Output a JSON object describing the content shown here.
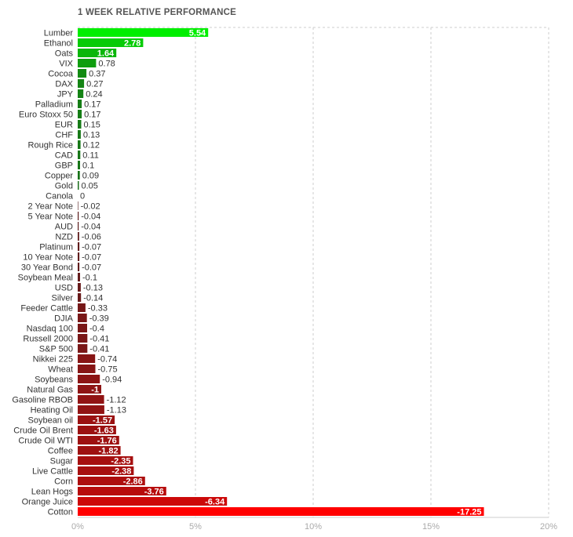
{
  "chart_data": {
    "type": "bar",
    "orientation": "horizontal",
    "title": "1 WEEK RELATIVE PERFORMANCE",
    "xlim": [
      0,
      20
    ],
    "ticks": [
      "0%",
      "5%",
      "10%",
      "15%",
      "20%"
    ],
    "grid": true,
    "categories": [
      "Lumber",
      "Ethanol",
      "Oats",
      "VIX",
      "Cocoa",
      "DAX",
      "JPY",
      "Palladium",
      "Euro Stoxx 50",
      "EUR",
      "CHF",
      "Rough Rice",
      "CAD",
      "GBP",
      "Copper",
      "Gold",
      "Canola",
      "2 Year Note",
      "5 Year Note",
      "AUD",
      "NZD",
      "Platinum",
      "10 Year Note",
      "30 Year Bond",
      "Soybean Meal",
      "USD",
      "Silver",
      "Feeder Cattle",
      "DJIA",
      "Nasdaq 100",
      "Russell 2000",
      "S&P 500",
      "Nikkei 225",
      "Wheat",
      "Soybeans",
      "Natural Gas",
      "Gasoline RBOB",
      "Heating Oil",
      "Soybean oil",
      "Crude Oil Brent",
      "Crude Oil WTI",
      "Coffee",
      "Sugar",
      "Live Cattle",
      "Corn",
      "Lean Hogs",
      "Orange Juice",
      "Cotton"
    ],
    "values": [
      5.54,
      2.78,
      1.64,
      0.78,
      0.37,
      0.27,
      0.24,
      0.17,
      0.17,
      0.15,
      0.13,
      0.12,
      0.11,
      0.1,
      0.09,
      0.05,
      0,
      -0.02,
      -0.04,
      -0.04,
      -0.06,
      -0.07,
      -0.07,
      -0.07,
      -0.1,
      -0.13,
      -0.14,
      -0.33,
      -0.39,
      -0.4,
      -0.41,
      -0.41,
      -0.74,
      -0.75,
      -0.94,
      -1,
      -1.12,
      -1.13,
      -1.57,
      -1.63,
      -1.76,
      -1.82,
      -2.35,
      -2.38,
      -2.86,
      -3.76,
      -6.34,
      -17.25
    ],
    "value_labels": [
      "5.54",
      "2.78",
      "1.64",
      "0.78",
      "0.37",
      "0.27",
      "0.24",
      "0.17",
      "0.17",
      "0.15",
      "0.13",
      "0.12",
      "0.11",
      "0.1",
      "0.09",
      "0.05",
      "0",
      "-0.02",
      "-0.04",
      "-0.04",
      "-0.06",
      "-0.07",
      "-0.07",
      "-0.07",
      "-0.1",
      "-0.13",
      "-0.14",
      "-0.33",
      "-0.39",
      "-0.4",
      "-0.41",
      "-0.41",
      "-0.74",
      "-0.75",
      "-0.94",
      "-1",
      "-1.12",
      "-1.13",
      "-1.57",
      "-1.63",
      "-1.76",
      "-1.82",
      "-2.35",
      "-2.38",
      "-2.86",
      "-3.76",
      "-6.34",
      "-17.25"
    ],
    "colors": {
      "positive_strong": "#00ee00",
      "positive_dark": "#1e4d1e",
      "negative_dark": "#3a2222",
      "negative_strong": "#ff0000",
      "grid": "#cccccc",
      "label_text": "#333333",
      "tick_text": "#aaaaaa"
    }
  }
}
